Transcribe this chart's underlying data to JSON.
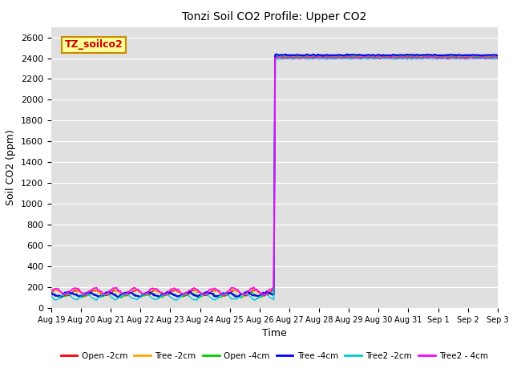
{
  "title": "Tonzi Soil CO2 Profile: Upper CO2",
  "ylabel": "Soil CO2 (ppm)",
  "xlabel": "Time",
  "ylim": [
    0,
    2700
  ],
  "yticks": [
    0,
    200,
    400,
    600,
    800,
    1000,
    1200,
    1400,
    1600,
    1800,
    2000,
    2200,
    2400,
    2600
  ],
  "bg_color": "#e0e0e0",
  "series": [
    {
      "name": "Open -2cm",
      "color": "#ff0000",
      "base": 145,
      "amp": 25,
      "freq": 1.5,
      "phase": 0.0,
      "high": 2415,
      "noise_lo": 5,
      "noise_hi": 3,
      "lw": 1.0
    },
    {
      "name": "Tree -2cm",
      "color": "#ffa500",
      "base": 158,
      "amp": 22,
      "freq": 1.5,
      "phase": 0.8,
      "high": 2420,
      "noise_lo": 5,
      "noise_hi": 3,
      "lw": 1.0
    },
    {
      "name": "Open -4cm",
      "color": "#00cc00",
      "base": 125,
      "amp": 20,
      "freq": 1.5,
      "phase": 1.6,
      "high": 2418,
      "noise_lo": 5,
      "noise_hi": 3,
      "lw": 1.0
    },
    {
      "name": "Tree -4cm",
      "color": "#0000ff",
      "base": 132,
      "amp": 18,
      "freq": 1.5,
      "phase": 2.4,
      "high": 2430,
      "noise_lo": 5,
      "noise_hi": 3,
      "lw": 1.5
    },
    {
      "name": "Tree2 -2cm",
      "color": "#00cccc",
      "base": 108,
      "amp": 28,
      "freq": 1.5,
      "phase": 3.2,
      "high": 2395,
      "noise_lo": 5,
      "noise_hi": 3,
      "lw": 1.0
    },
    {
      "name": "Tree2 - 4cm",
      "color": "#ff00ff",
      "base": 162,
      "amp": 30,
      "freq": 1.5,
      "phase": 0.4,
      "high": 2405,
      "noise_lo": 5,
      "noise_hi": 3,
      "lw": 1.2
    }
  ],
  "x_labels": [
    "Aug 19",
    "Aug 20",
    "Aug 21",
    "Aug 22",
    "Aug 23",
    "Aug 24",
    "Aug 25",
    "Aug 26",
    "Aug 27",
    "Aug 28",
    "Aug 29",
    "Aug 30",
    "Aug 31",
    "Sep 1",
    "Sep 2",
    "Sep 3"
  ],
  "jump_index": 168,
  "n_points": 336,
  "annotation_text": "TZ_soilco2",
  "annotation_bg": "#ffff99",
  "annotation_border": "#cc8800"
}
